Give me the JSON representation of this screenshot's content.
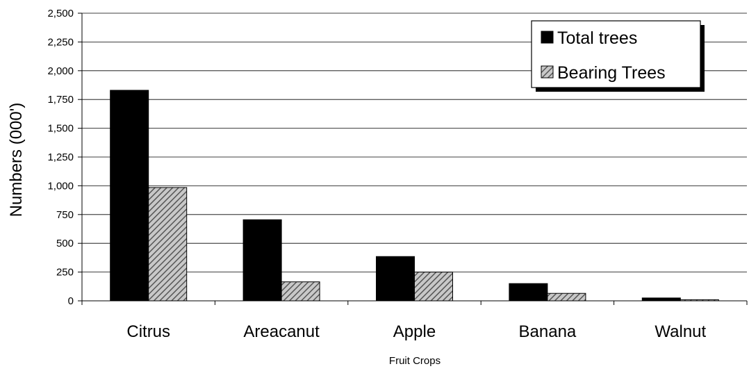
{
  "chart_data": {
    "type": "bar",
    "title": "",
    "xlabel": "Fruit Crops",
    "ylabel": "Numbers (000')",
    "categories": [
      "Citrus",
      "Areacanut",
      "Apple",
      "Banana",
      "Walnut"
    ],
    "series": [
      {
        "name": "Total trees",
        "values": [
          1830,
          705,
          385,
          150,
          25
        ],
        "color": "#000000",
        "pattern": "solid"
      },
      {
        "name": "Bearing Trees",
        "values": [
          985,
          165,
          250,
          65,
          10
        ],
        "color": "#a6a6a6",
        "pattern": "diagonal-hatch"
      }
    ],
    "ylim": [
      0,
      2500
    ],
    "yticks": [
      0,
      250,
      500,
      750,
      1000,
      1250,
      1500,
      1750,
      2000,
      2250,
      2500
    ],
    "ytick_labels": [
      "0",
      "250",
      "500",
      "750",
      "1,000",
      "1,250",
      "1,500",
      "1,750",
      "2,000",
      "2,250",
      "2,500"
    ],
    "grid": true,
    "legend_position": "top-right"
  }
}
